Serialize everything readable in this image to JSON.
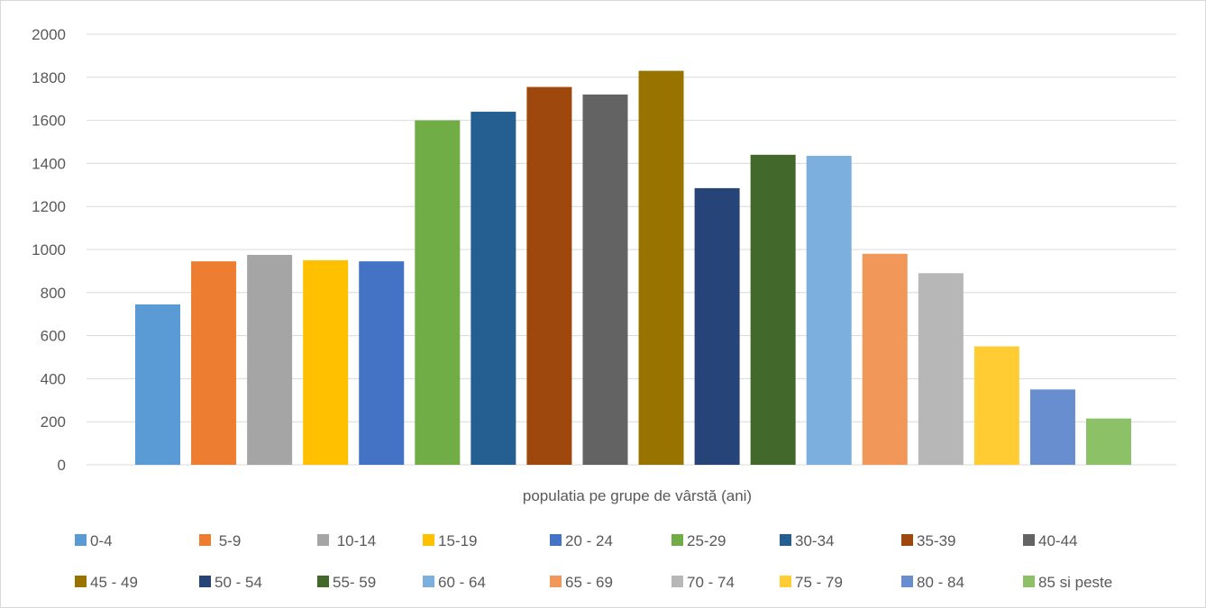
{
  "chart_data": {
    "type": "bar",
    "title": "",
    "xlabel": "populatia pe grupe de vârstă (ani)",
    "ylabel": "",
    "ylim": [
      0,
      2000
    ],
    "yticks": [
      0,
      200,
      400,
      600,
      800,
      1000,
      1200,
      1400,
      1600,
      1800,
      2000
    ],
    "grid": true,
    "legend_position": "bottom",
    "categories": [
      "0-4",
      " 5-9",
      " 10-14",
      "15-19",
      "20 - 24",
      "25-29",
      "30-34",
      "35-39",
      "40-44",
      "45 - 49",
      "50 - 54",
      "55- 59",
      "60 - 64",
      "65 - 69",
      "70 - 74",
      "75 - 79",
      "80 - 84",
      "85 si peste"
    ],
    "values": [
      745,
      945,
      975,
      950,
      945,
      1600,
      1640,
      1755,
      1720,
      1830,
      1285,
      1440,
      1435,
      980,
      890,
      550,
      350,
      215
    ],
    "colors": [
      "#5b9bd5",
      "#ed7d31",
      "#a5a5a5",
      "#ffc000",
      "#4472c4",
      "#70ad47",
      "#255e91",
      "#9e480e",
      "#636363",
      "#997300",
      "#264478",
      "#43682b",
      "#7cafdd",
      "#f1975a",
      "#b7b7b7",
      "#ffcd33",
      "#698ed0",
      "#8cc168"
    ]
  }
}
